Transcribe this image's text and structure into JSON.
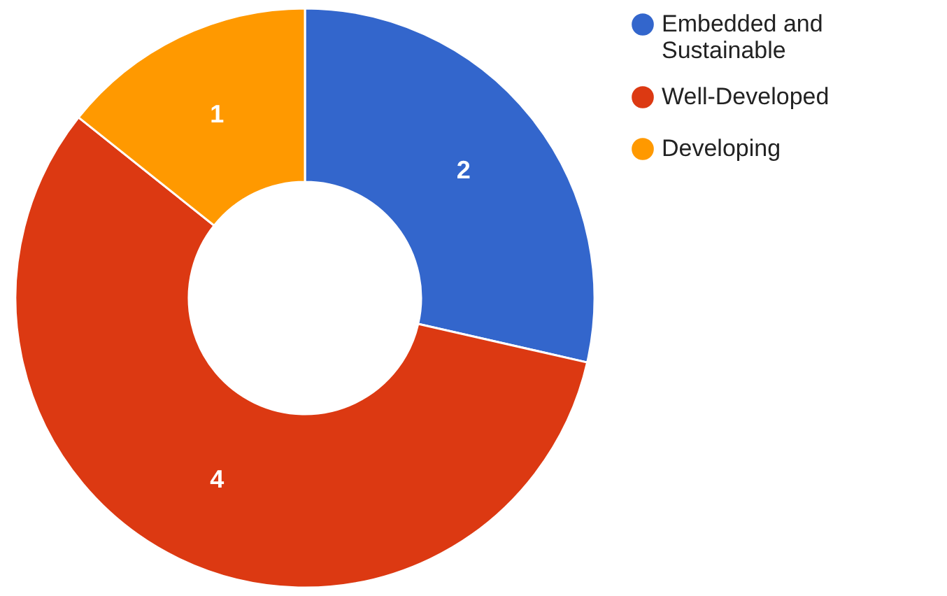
{
  "chart_data": {
    "type": "donut",
    "categories": [
      "Embedded and Sustainable",
      "Well-Developed",
      "Developing"
    ],
    "values": [
      2,
      4,
      1
    ],
    "colors": [
      "#3366cc",
      "#dc3912",
      "#ff9900"
    ],
    "data_labels": true,
    "legend": "top right"
  }
}
